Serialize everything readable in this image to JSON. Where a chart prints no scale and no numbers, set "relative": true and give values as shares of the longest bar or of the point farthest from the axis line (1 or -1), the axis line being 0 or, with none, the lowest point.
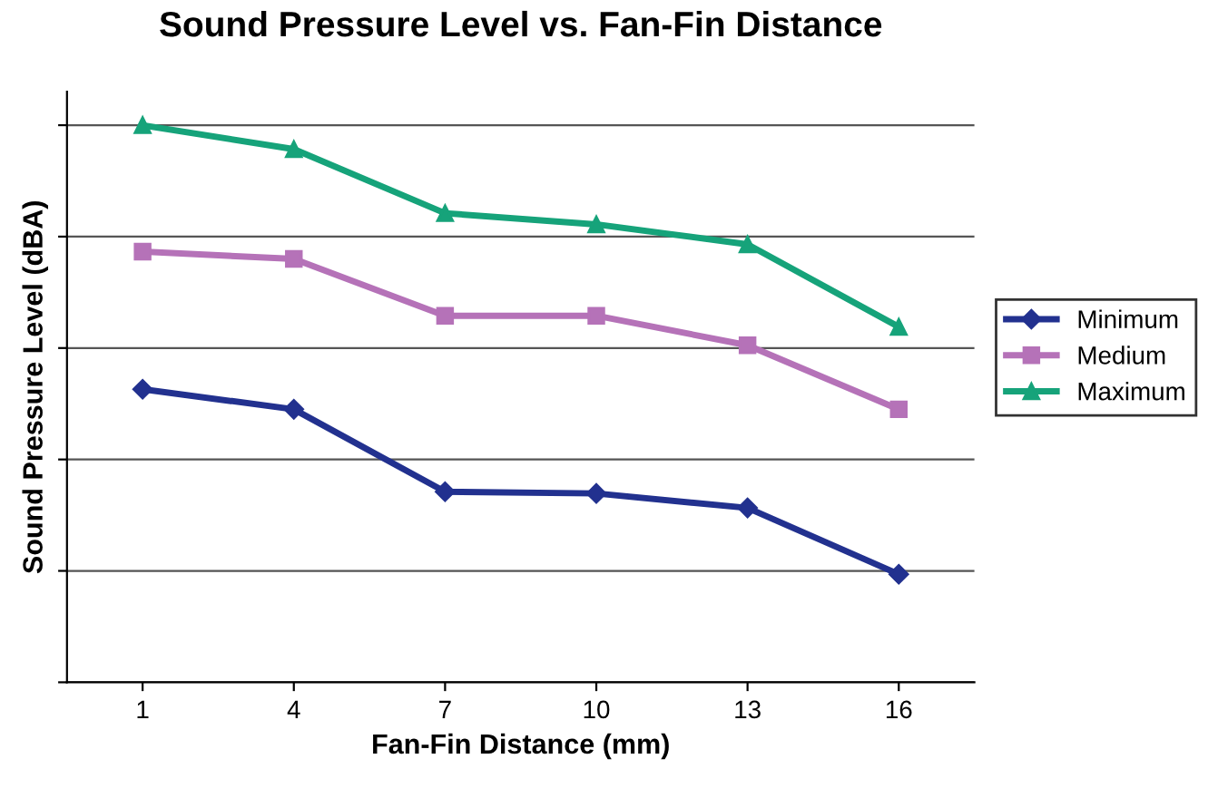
{
  "chart_data": {
    "type": "line",
    "title": "Sound Pressure Level vs. Fan-Fin Distance",
    "xlabel": "Fan-Fin Distance (mm)",
    "ylabel": "Sound Pressure Level (dBA)",
    "categories": [
      "1",
      "4",
      "7",
      "10",
      "13",
      "16"
    ],
    "relative": true,
    "grid": "y",
    "legend": "right",
    "series": [
      {
        "name": "Minimum",
        "color": "#22318f",
        "marker": "diamond",
        "values": [
          0.526,
          0.49,
          0.342,
          0.339,
          0.313,
          0.194
        ]
      },
      {
        "name": "Medium",
        "color": "#b572b8",
        "marker": "square",
        "values": [
          0.773,
          0.76,
          0.658,
          0.658,
          0.605,
          0.49
        ]
      },
      {
        "name": "Maximum",
        "color": "#16a37a",
        "marker": "triangle",
        "values": [
          1,
          0.957,
          0.842,
          0.822,
          0.786,
          0.638
        ]
      }
    ]
  }
}
